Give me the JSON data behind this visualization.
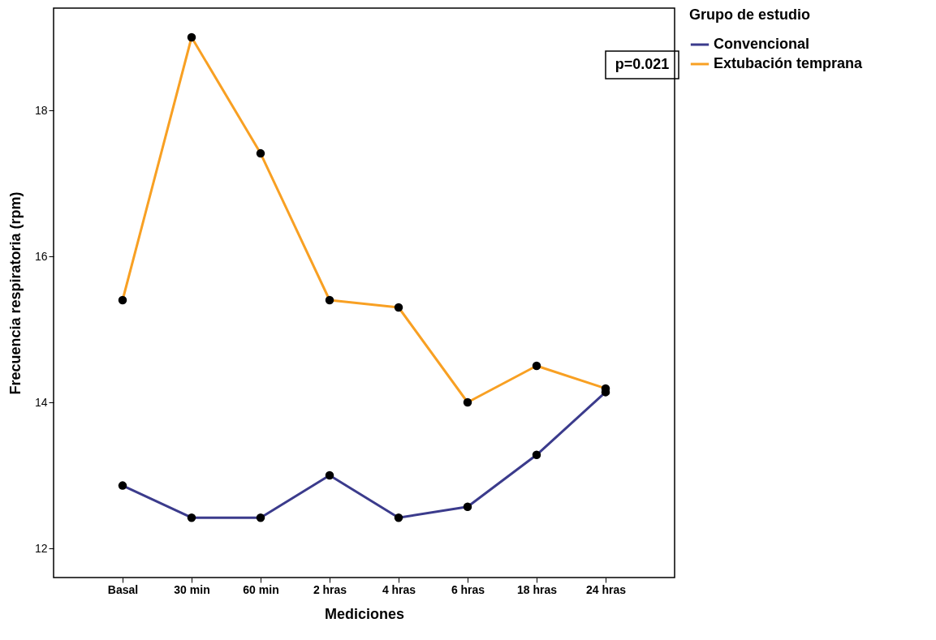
{
  "chart_data": {
    "type": "line",
    "xlabel": "Mediciones",
    "ylabel": "Frecuencia respiratoria (rpm)",
    "legend_title": "Grupo de estudio",
    "categories": [
      "Basal",
      "30 min",
      "60 min",
      "2 hras",
      "4 hras",
      "6 hras",
      "18 hras",
      "24 hras"
    ],
    "series": [
      {
        "name": "Convencional",
        "color": "#3b3b8c",
        "values": [
          12.86,
          12.42,
          12.42,
          13.0,
          12.42,
          12.57,
          13.28,
          14.14
        ]
      },
      {
        "name": "Extubación temprana",
        "color": "#f8a023",
        "values": [
          15.4,
          19.0,
          17.41,
          15.4,
          15.3,
          14.0,
          14.5,
          14.19
        ]
      }
    ],
    "ylim": [
      11.6,
      19.4
    ],
    "yticks": [
      12,
      14,
      16,
      18
    ],
    "grid": false,
    "legend": "right",
    "marker": "circle",
    "line_style": "solid",
    "annotations": [
      "p=0.021"
    ]
  }
}
